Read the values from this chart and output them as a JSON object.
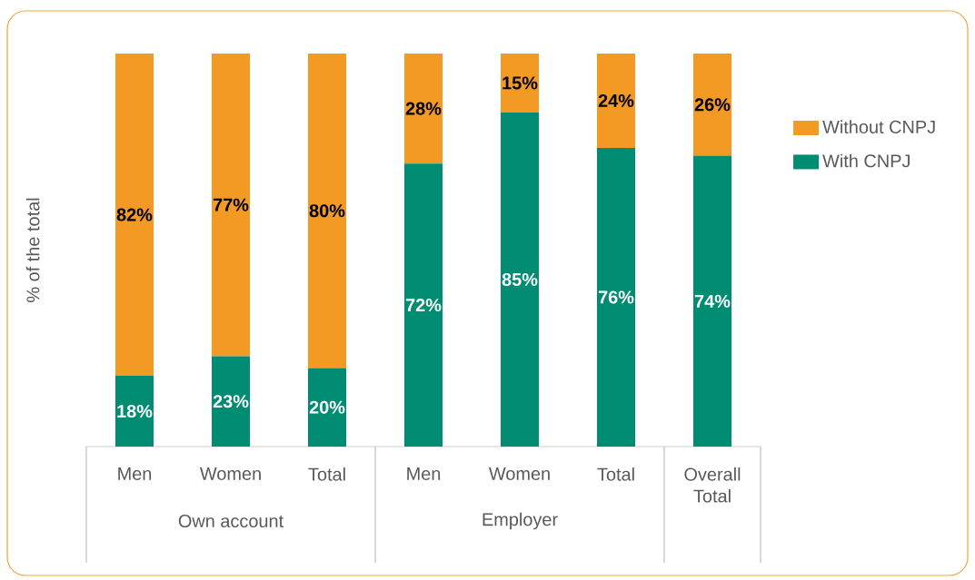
{
  "chart_data": {
    "type": "bar",
    "stacked": true,
    "ylabel": "% of the total",
    "categories": [
      "Men",
      "Women",
      "Total",
      "Men",
      "Women",
      "Total",
      "Overall Total"
    ],
    "ylim": [
      0,
      100
    ],
    "legend": "right",
    "grid": false,
    "annotations": [
      "Own account",
      "Employer"
    ],
    "series": [
      {
        "name": "With CNPJ",
        "color": "#008c72",
        "values": [
          18,
          23,
          20,
          72,
          85,
          76,
          74
        ],
        "value_labels": [
          "18%",
          "23%",
          "20%",
          "72%",
          "85%",
          "76%",
          "74%"
        ]
      },
      {
        "name": "Without CNPJ",
        "color": "#f39a24",
        "values": [
          82,
          77,
          80,
          28,
          15,
          24,
          26
        ],
        "value_labels": [
          "82%",
          "77%",
          "80%",
          "28%",
          "15%",
          "24%",
          "26%"
        ]
      }
    ]
  }
}
